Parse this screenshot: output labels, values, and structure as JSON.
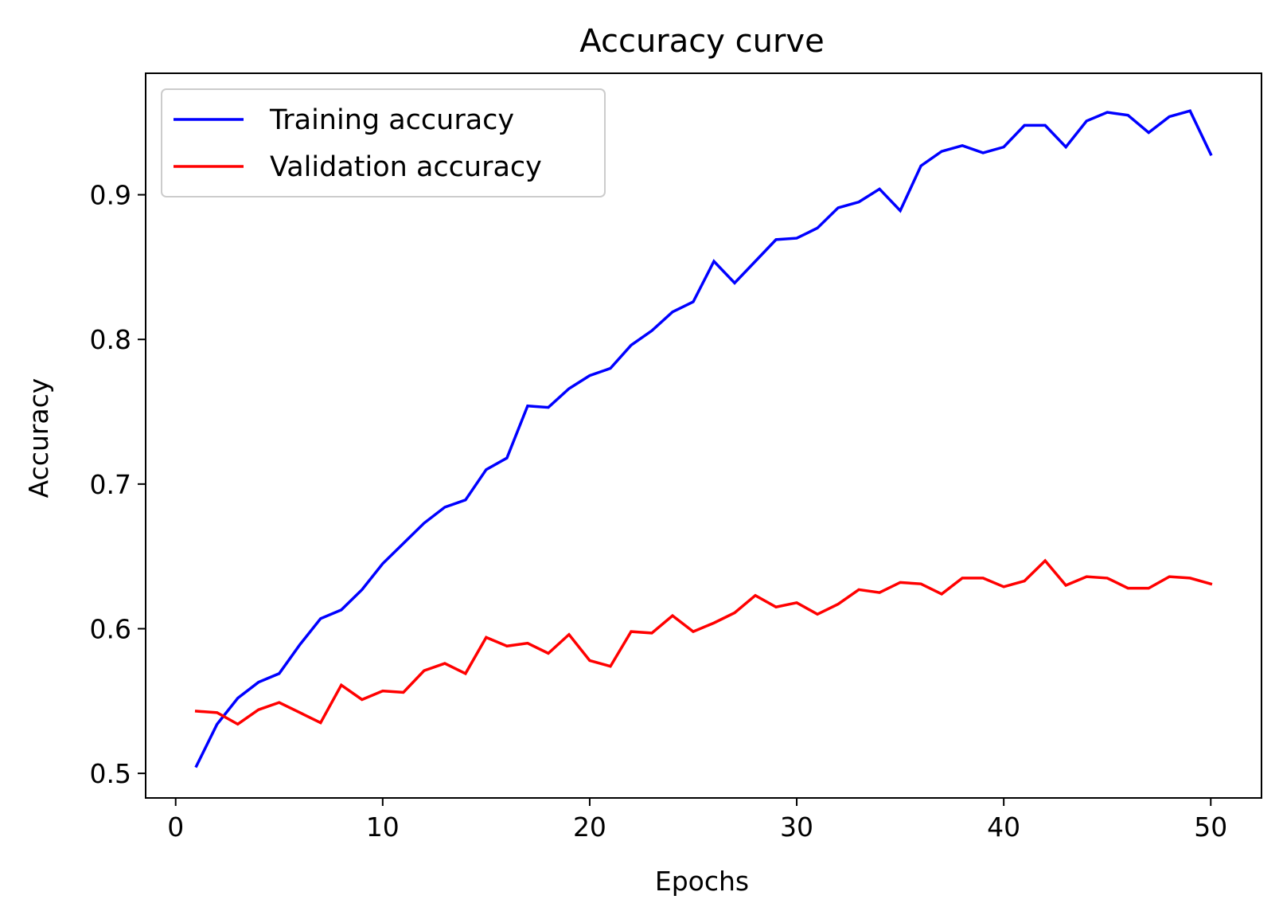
{
  "chart_data": {
    "type": "line",
    "title": "Accuracy curve",
    "xlabel": "Epochs",
    "ylabel": "Accuracy",
    "xlim": [
      -1.45,
      52.45
    ],
    "ylim": [
      0.483,
      0.984
    ],
    "xticks": [
      0,
      10,
      20,
      30,
      40,
      50
    ],
    "xtick_labels": [
      "0",
      "10",
      "20",
      "30",
      "40",
      "50"
    ],
    "yticks": [
      0.5,
      0.6,
      0.7,
      0.8,
      0.9
    ],
    "ytick_labels": [
      "0.5",
      "0.6",
      "0.7",
      "0.8",
      "0.9"
    ],
    "grid": false,
    "legend_position": "upper-left",
    "x": [
      1,
      2,
      3,
      4,
      5,
      6,
      7,
      8,
      9,
      10,
      11,
      12,
      13,
      14,
      15,
      16,
      17,
      18,
      19,
      20,
      21,
      22,
      23,
      24,
      25,
      26,
      27,
      28,
      29,
      30,
      31,
      32,
      33,
      34,
      35,
      36,
      37,
      38,
      39,
      40,
      41,
      42,
      43,
      44,
      45,
      46,
      47,
      48,
      49,
      50
    ],
    "series": [
      {
        "name": "Training accuracy",
        "color": "#0000ff",
        "values": [
          0.505,
          0.534,
          0.552,
          0.563,
          0.569,
          0.589,
          0.607,
          0.613,
          0.627,
          0.645,
          0.659,
          0.673,
          0.684,
          0.689,
          0.71,
          0.718,
          0.754,
          0.753,
          0.766,
          0.775,
          0.78,
          0.796,
          0.806,
          0.819,
          0.826,
          0.854,
          0.839,
          0.854,
          0.869,
          0.87,
          0.877,
          0.891,
          0.895,
          0.904,
          0.889,
          0.92,
          0.93,
          0.934,
          0.929,
          0.933,
          0.948,
          0.948,
          0.933,
          0.951,
          0.957,
          0.955,
          0.943,
          0.954,
          0.958,
          0.928
        ]
      },
      {
        "name": "Validation accuracy",
        "color": "#ff0000",
        "values": [
          0.543,
          0.542,
          0.534,
          0.544,
          0.549,
          0.542,
          0.535,
          0.561,
          0.551,
          0.557,
          0.556,
          0.571,
          0.576,
          0.569,
          0.594,
          0.588,
          0.59,
          0.583,
          0.596,
          0.578,
          0.574,
          0.598,
          0.597,
          0.609,
          0.598,
          0.604,
          0.611,
          0.623,
          0.615,
          0.618,
          0.61,
          0.617,
          0.627,
          0.625,
          0.632,
          0.631,
          0.624,
          0.635,
          0.635,
          0.629,
          0.633,
          0.647,
          0.63,
          0.636,
          0.635,
          0.628,
          0.628,
          0.636,
          0.635,
          0.631
        ]
      }
    ]
  }
}
